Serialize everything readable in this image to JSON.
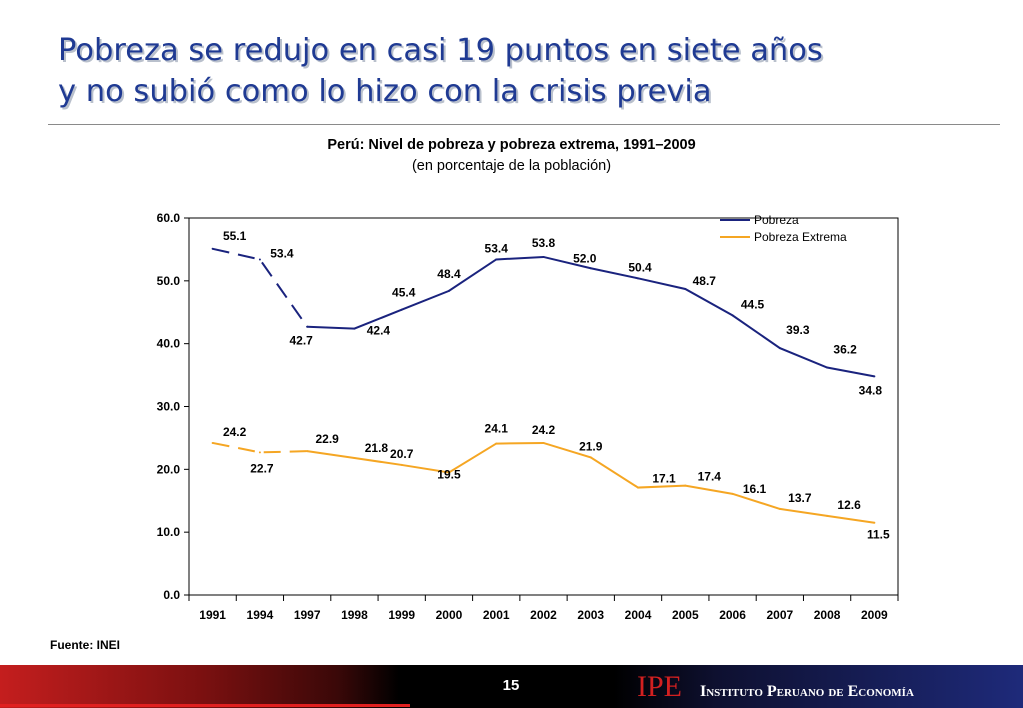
{
  "slide": {
    "title_line1": "Pobreza se redujo en casi 19 puntos en siete años",
    "title_line2": "y no subió como lo hizo con la crisis previa",
    "source": "Fuente: INEI",
    "page_number": "15",
    "footer_logo": "IPE",
    "footer_org": "Instituto Peruano de Economía"
  },
  "chart_data": {
    "type": "line",
    "title": "Perú: Nivel de pobreza y pobreza extrema, 1991–2009",
    "subtitle": "(en porcentaje de la población)",
    "categories": [
      "1991",
      "1994",
      "1997",
      "1998",
      "1999",
      "2000",
      "2001",
      "2002",
      "2003",
      "2004",
      "2005",
      "2006",
      "2007",
      "2008",
      "2009"
    ],
    "ylim": [
      0,
      60
    ],
    "yticks": [
      "0.0",
      "10.0",
      "20.0",
      "30.0",
      "40.0",
      "50.0",
      "60.0"
    ],
    "grid": false,
    "legend_position": "top-right",
    "dashed_through_category_index": 2,
    "series": [
      {
        "name": "Pobreza",
        "color": "#1a237e",
        "values": [
          55.1,
          53.4,
          42.7,
          42.4,
          45.4,
          48.4,
          53.4,
          53.8,
          52.0,
          50.4,
          48.7,
          44.5,
          39.3,
          36.2,
          34.8
        ],
        "labels": [
          "55.1",
          "53.4",
          "42.7",
          "42.4",
          "45.4",
          "48.4",
          "53.4",
          "53.8",
          "52.0",
          "50.4",
          "48.7",
          "44.5",
          "39.3",
          "36.2",
          "34.8"
        ]
      },
      {
        "name": "Pobreza Extrema",
        "color": "#f5a623",
        "values": [
          24.2,
          22.7,
          22.9,
          21.8,
          20.7,
          19.5,
          24.1,
          24.2,
          21.9,
          17.1,
          17.4,
          16.1,
          13.7,
          12.6,
          11.5
        ],
        "labels": [
          "24.2",
          "22.7",
          "22.9",
          "21.8",
          "20.7",
          "19.5",
          "24.1",
          "24.2",
          "21.9",
          "17.1",
          "17.4",
          "16.1",
          "13.7",
          "12.6",
          "11.5"
        ]
      }
    ]
  }
}
